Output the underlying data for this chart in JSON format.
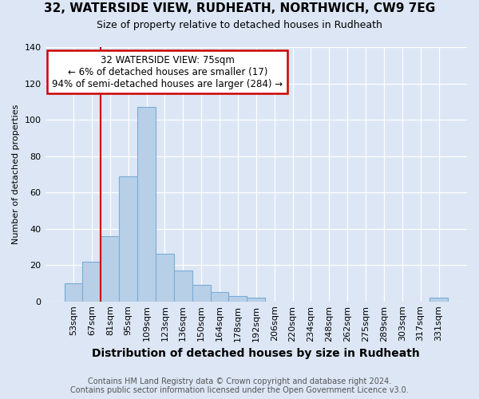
{
  "title1": "32, WATERSIDE VIEW, RUDHEATH, NORTHWICH, CW9 7EG",
  "title2": "Size of property relative to detached houses in Rudheath",
  "xlabel": "Distribution of detached houses by size in Rudheath",
  "ylabel": "Number of detached properties",
  "footnote1": "Contains HM Land Registry data © Crown copyright and database right 2024.",
  "footnote2": "Contains public sector information licensed under the Open Government Licence v3.0.",
  "categories": [
    "53sqm",
    "67sqm",
    "81sqm",
    "95sqm",
    "109sqm",
    "123sqm",
    "136sqm",
    "150sqm",
    "164sqm",
    "178sqm",
    "192sqm",
    "206sqm",
    "220sqm",
    "234sqm",
    "248sqm",
    "262sqm",
    "275sqm",
    "289sqm",
    "303sqm",
    "317sqm",
    "331sqm"
  ],
  "values": [
    10,
    22,
    36,
    69,
    107,
    26,
    17,
    9,
    5,
    3,
    2,
    0,
    0,
    0,
    0,
    0,
    0,
    0,
    0,
    0,
    2
  ],
  "bar_color": "#b8cfe8",
  "bar_edge_color": "#7aacd4",
  "annotation_line1": "32 WATERSIDE VIEW: 75sqm",
  "annotation_line2": "← 6% of detached houses are smaller (17)",
  "annotation_line3": "94% of semi-detached houses are larger (284) →",
  "annotation_box_color": "#ffffff",
  "annotation_box_edge_color": "#cc0000",
  "vline_color": "#cc0000",
  "bg_color": "#dce6f5",
  "plot_bg_color": "#dce6f5",
  "ylim": [
    0,
    140
  ],
  "yticks": [
    0,
    20,
    40,
    60,
    80,
    100,
    120,
    140
  ],
  "vline_x": 1.5,
  "grid_color": "#ffffff",
  "title1_fontsize": 11,
  "title2_fontsize": 9,
  "xlabel_fontsize": 10,
  "ylabel_fontsize": 8,
  "tick_fontsize": 8,
  "footnote_fontsize": 7
}
